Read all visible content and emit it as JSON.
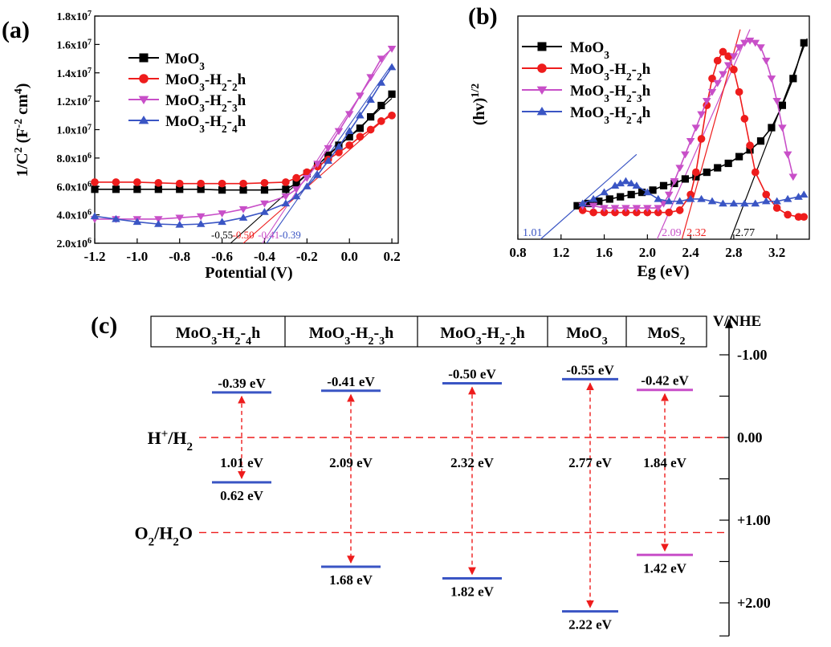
{
  "chart_data": [
    {
      "panel": "(a)",
      "type": "scatter",
      "xlabel": "Potential  (V)",
      "ylabel": "1/C^2 (F^-2 cm^4)",
      "xlim": [
        -1.2,
        0.23
      ],
      "ylim": [
        2000000.0,
        18000000.0
      ],
      "x_ticks": [
        "-1.2",
        "-1.0",
        "-0.8",
        "-0.6",
        "-0.4",
        "-0.2",
        "0.0",
        "0.2"
      ],
      "x_tick_values": [
        -1.2,
        -1.0,
        -0.8,
        -0.6,
        -0.4,
        -0.2,
        0.0,
        0.2
      ],
      "y_tick_values": [
        2000000.0,
        4000000.0,
        6000000.0,
        8000000.0,
        10000000.0,
        12000000.0,
        14000000.0,
        16000000.0,
        18000000.0
      ],
      "y_ticks": [
        {
          "mant": "2.0x10",
          "exp": "6"
        },
        {
          "mant": "4.0x10",
          "exp": "6"
        },
        {
          "mant": "6.0x10",
          "exp": "6"
        },
        {
          "mant": "8.0x10",
          "exp": "6"
        },
        {
          "mant": "1.0x10",
          "exp": "7"
        },
        {
          "mant": "1.2x10",
          "exp": "7"
        },
        {
          "mant": "1.4x10",
          "exp": "7"
        },
        {
          "mant": "1.6x10",
          "exp": "7"
        },
        {
          "mant": "1.8x10",
          "exp": "7"
        }
      ],
      "legend_position": "top-left",
      "series": [
        {
          "name": "MoO3",
          "color": "#000000",
          "marker": "square",
          "x": [
            -1.2,
            -1.1,
            -1.0,
            -0.9,
            -0.8,
            -0.7,
            -0.6,
            -0.5,
            -0.4,
            -0.3,
            -0.25,
            -0.2,
            -0.15,
            -0.1,
            -0.05,
            0.0,
            0.05,
            0.1,
            0.15,
            0.2
          ],
          "y": [
            5800000.0,
            5800000.0,
            5800000.0,
            5800000.0,
            5800000.0,
            5800000.0,
            5750000.0,
            5750000.0,
            5750000.0,
            5800000.0,
            6200000.0,
            6900000.0,
            7500000.0,
            8200000.0,
            8900000.0,
            9500000.0,
            10100000.0,
            10900000.0,
            11700000.0,
            12500000.0
          ]
        },
        {
          "name": "MoO3-H2-2h",
          "color": "#ee1c1c",
          "marker": "circle",
          "x": [
            -1.2,
            -1.1,
            -1.0,
            -0.9,
            -0.8,
            -0.7,
            -0.6,
            -0.5,
            -0.4,
            -0.3,
            -0.25,
            -0.2,
            -0.15,
            -0.1,
            -0.05,
            0.0,
            0.05,
            0.1,
            0.15,
            0.2
          ],
          "y": [
            6300000.0,
            6300000.0,
            6300000.0,
            6250000.0,
            6200000.0,
            6200000.0,
            6200000.0,
            6200000.0,
            6250000.0,
            6300000.0,
            6600000.0,
            7000000.0,
            7400000.0,
            7900000.0,
            8400000.0,
            8900000.0,
            9500000.0,
            10000000.0,
            10600000.0,
            11000000.0
          ]
        },
        {
          "name": "MoO3-H2-3h",
          "color": "#c84fc8",
          "marker": "triangle-down",
          "x": [
            -1.2,
            -1.1,
            -1.0,
            -0.9,
            -0.8,
            -0.7,
            -0.6,
            -0.5,
            -0.4,
            -0.3,
            -0.25,
            -0.2,
            -0.15,
            -0.1,
            -0.05,
            0.0,
            0.05,
            0.1,
            0.15,
            0.2
          ],
          "y": [
            3700000.0,
            3700000.0,
            3700000.0,
            3700000.0,
            3800000.0,
            3900000.0,
            4100000.0,
            4400000.0,
            4800000.0,
            5300000.0,
            5800000.0,
            6600000.0,
            7600000.0,
            8700000.0,
            9900000.0,
            11100000.0,
            12400000.0,
            13700000.0,
            15000000.0,
            15700000.0
          ]
        },
        {
          "name": "MoO3-H2-4h",
          "color": "#3a55c4",
          "marker": "triangle-up",
          "x": [
            -1.2,
            -1.1,
            -1.0,
            -0.9,
            -0.8,
            -0.7,
            -0.6,
            -0.5,
            -0.4,
            -0.3,
            -0.25,
            -0.2,
            -0.15,
            -0.1,
            -0.05,
            0.0,
            0.05,
            0.1,
            0.15,
            0.2
          ],
          "y": [
            3900000.0,
            3700000.0,
            3500000.0,
            3350000.0,
            3300000.0,
            3350000.0,
            3500000.0,
            3800000.0,
            4200000.0,
            4800000.0,
            5300000.0,
            6000000.0,
            6800000.0,
            7800000.0,
            8800000.0,
            9900000.0,
            11000000.0,
            12100000.0,
            13300000.0,
            14400000.0
          ]
        }
      ],
      "fit_lines": [
        {
          "color": "#000000",
          "points": [
            [
              -0.56,
              2000000.0
            ],
            [
              0.2,
              12200000.0
            ]
          ]
        },
        {
          "color": "#ee1c1c",
          "points": [
            [
              -0.5,
              2000000.0
            ],
            [
              0.2,
              11200000.0
            ]
          ]
        },
        {
          "color": "#c84fc8",
          "points": [
            [
              -0.41,
              2000000.0
            ],
            [
              0.2,
              15800000.0
            ]
          ]
        },
        {
          "color": "#3a55c4",
          "points": [
            [
              -0.39,
              2000000.0
            ],
            [
              0.2,
              14600000.0
            ]
          ]
        }
      ],
      "annotations": [
        {
          "text": "-0.55",
          "color": "#000000",
          "x": -0.6
        },
        {
          "text": "-0.50",
          "color": "#ee1c1c",
          "x": -0.5
        },
        {
          "text": "-0.41",
          "color": "#c84fc8",
          "x": -0.38
        },
        {
          "text": "-0.39",
          "color": "#3a55c4",
          "x": -0.28
        }
      ]
    },
    {
      "panel": "(b)",
      "type": "scatter",
      "xlabel": "Eg (eV)",
      "ylabel": "(hv)^1/2",
      "xlim": [
        0.8,
        3.5
      ],
      "ylim": [
        0.0,
        1.0
      ],
      "x_ticks": [
        "0.8",
        "1.2",
        "1.6",
        "2.0",
        "2.4",
        "2.8",
        "3.2"
      ],
      "x_tick_values": [
        0.8,
        1.2,
        1.6,
        2.0,
        2.4,
        2.8,
        3.2
      ],
      "legend_position": "top-left",
      "series": [
        {
          "name": "MoO3",
          "color": "#000000",
          "marker": "square",
          "x": [
            1.35,
            1.45,
            1.55,
            1.65,
            1.75,
            1.85,
            1.95,
            2.05,
            2.15,
            2.25,
            2.35,
            2.45,
            2.55,
            2.65,
            2.75,
            2.85,
            2.95,
            3.05,
            3.15,
            3.25,
            3.35,
            3.45
          ],
          "y": [
            0.15,
            0.16,
            0.17,
            0.18,
            0.19,
            0.2,
            0.21,
            0.22,
            0.24,
            0.25,
            0.27,
            0.28,
            0.3,
            0.32,
            0.34,
            0.37,
            0.4,
            0.44,
            0.5,
            0.6,
            0.72,
            0.88
          ]
        },
        {
          "name": "MoO3-H2-2h",
          "color": "#ee1c1c",
          "marker": "circle",
          "x": [
            1.4,
            1.5,
            1.6,
            1.7,
            1.8,
            1.9,
            2.0,
            2.1,
            2.2,
            2.3,
            2.4,
            2.45,
            2.5,
            2.55,
            2.6,
            2.65,
            2.7,
            2.75,
            2.8,
            2.85,
            2.9,
            2.95,
            3.0,
            3.1,
            3.2,
            3.3,
            3.4,
            3.45
          ],
          "y": [
            0.13,
            0.12,
            0.12,
            0.12,
            0.12,
            0.12,
            0.12,
            0.12,
            0.12,
            0.13,
            0.2,
            0.3,
            0.45,
            0.6,
            0.72,
            0.8,
            0.84,
            0.82,
            0.76,
            0.66,
            0.54,
            0.42,
            0.3,
            0.2,
            0.14,
            0.11,
            0.1,
            0.1
          ]
        },
        {
          "name": "MoO3-H2-3h",
          "color": "#c84fc8",
          "marker": "triangle-down",
          "x": [
            1.4,
            1.5,
            1.6,
            1.7,
            1.8,
            1.9,
            2.0,
            2.1,
            2.15,
            2.2,
            2.25,
            2.3,
            2.35,
            2.4,
            2.45,
            2.5,
            2.55,
            2.6,
            2.65,
            2.7,
            2.75,
            2.8,
            2.85,
            2.9,
            2.95,
            3.0,
            3.05,
            3.1,
            3.15,
            3.2,
            3.25,
            3.3,
            3.35
          ],
          "y": [
            0.15,
            0.15,
            0.14,
            0.14,
            0.14,
            0.14,
            0.14,
            0.14,
            0.16,
            0.2,
            0.26,
            0.32,
            0.38,
            0.44,
            0.5,
            0.56,
            0.62,
            0.66,
            0.7,
            0.74,
            0.78,
            0.82,
            0.86,
            0.88,
            0.89,
            0.88,
            0.86,
            0.8,
            0.72,
            0.62,
            0.5,
            0.38,
            0.28
          ]
        },
        {
          "name": "MoO3-H2-4h",
          "color": "#3a55c4",
          "marker": "triangle-up",
          "x": [
            1.4,
            1.5,
            1.6,
            1.7,
            1.75,
            1.8,
            1.85,
            1.9,
            2.0,
            2.1,
            2.2,
            2.3,
            2.4,
            2.5,
            2.6,
            2.7,
            2.8,
            2.9,
            3.0,
            3.1,
            3.2,
            3.3,
            3.4,
            3.45
          ],
          "y": [
            0.16,
            0.18,
            0.21,
            0.24,
            0.25,
            0.26,
            0.25,
            0.24,
            0.21,
            0.18,
            0.17,
            0.17,
            0.18,
            0.18,
            0.17,
            0.16,
            0.16,
            0.16,
            0.16,
            0.17,
            0.17,
            0.18,
            0.19,
            0.2
          ]
        }
      ],
      "fit_lines": [
        {
          "color": "#3a55c4",
          "points": [
            [
              1.01,
              0.0
            ],
            [
              1.9,
              0.38
            ]
          ]
        },
        {
          "color": "#c84fc8",
          "points": [
            [
              2.09,
              0.0
            ],
            [
              2.95,
              0.94
            ]
          ]
        },
        {
          "color": "#ee1c1c",
          "points": [
            [
              2.32,
              0.0
            ],
            [
              2.86,
              0.94
            ]
          ]
        },
        {
          "color": "#000000",
          "points": [
            [
              2.77,
              0.0
            ],
            [
              3.48,
              0.9
            ]
          ]
        }
      ],
      "annotations": [
        {
          "text": "1.01",
          "color": "#3a55c4",
          "x": 1.01
        },
        {
          "text": "2.09",
          "color": "#c84fc8",
          "x": 2.09
        },
        {
          "text": "2.32",
          "color": "#ee1c1c",
          "x": 2.32
        },
        {
          "text": "2.77",
          "color": "#000000",
          "x": 2.77
        }
      ]
    }
  ],
  "panel_labels": {
    "a": "(a)",
    "b": "(b)",
    "c": "(c)"
  },
  "band_diagram": {
    "materials": [
      "MoO3-H2-4h",
      "MoO3-H2-3h",
      "MoO3-H2-2h",
      "MoO3",
      "MoS2"
    ],
    "axis_title": "V/NHE",
    "axis_ticks": [
      "-1.00",
      "0.00",
      "+1.00",
      "+2.00"
    ],
    "reference_lines": [
      {
        "label": "H+/H2",
        "potential": 0.0
      },
      {
        "label": "O2/H2O",
        "potential": 1.23
      }
    ],
    "bands": [
      {
        "material": "MoO3-H2-4h",
        "cb": -0.39,
        "vb": 0.62,
        "cb_label": "-0.39 eV",
        "vb_label": "0.62 eV",
        "gap_label": "1.01 eV",
        "color": "#3a55c4"
      },
      {
        "material": "MoO3-H2-3h",
        "cb": -0.41,
        "vb": 1.68,
        "cb_label": "-0.41 eV",
        "vb_label": "1.68 eV",
        "gap_label": "2.09 eV",
        "color": "#3a55c4"
      },
      {
        "material": "MoO3-H2-2h",
        "cb": -0.5,
        "vb": 1.82,
        "cb_label": "-0.50 eV",
        "vb_label": "1.82 eV",
        "gap_label": "2.32 eV",
        "color": "#3a55c4"
      },
      {
        "material": "MoO3",
        "cb": -0.55,
        "vb": 2.22,
        "cb_label": "-0.55 eV",
        "vb_label": "2.22 eV",
        "gap_label": "2.77 eV",
        "color": "#3a55c4"
      },
      {
        "material": "MoS2",
        "cb": -0.42,
        "vb": 1.42,
        "cb_label": "-0.42 eV",
        "vb_label": "1.42 eV",
        "gap_label": "1.84 eV",
        "color": "#c84fc8"
      }
    ]
  }
}
